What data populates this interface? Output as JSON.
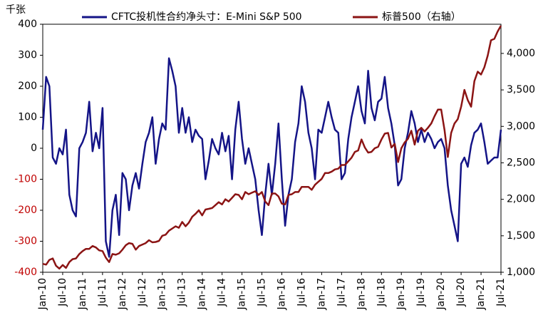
{
  "chart_data": {
    "type": "line",
    "y_unit": "千张",
    "legend": "top",
    "negative_tick_color": "#c00000",
    "x": [
      "2010-01",
      "2010-02",
      "2010-03",
      "2010-04",
      "2010-05",
      "2010-06",
      "2010-07",
      "2010-08",
      "2010-09",
      "2010-10",
      "2010-11",
      "2010-12",
      "2011-01",
      "2011-02",
      "2011-03",
      "2011-04",
      "2011-05",
      "2011-06",
      "2011-07",
      "2011-08",
      "2011-09",
      "2011-10",
      "2011-11",
      "2011-12",
      "2012-01",
      "2012-02",
      "2012-03",
      "2012-04",
      "2012-05",
      "2012-06",
      "2012-07",
      "2012-08",
      "2012-09",
      "2012-10",
      "2012-11",
      "2012-12",
      "2013-01",
      "2013-02",
      "2013-03",
      "2013-04",
      "2013-05",
      "2013-06",
      "2013-07",
      "2013-08",
      "2013-09",
      "2013-10",
      "2013-11",
      "2013-12",
      "2014-01",
      "2014-02",
      "2014-03",
      "2014-04",
      "2014-05",
      "2014-06",
      "2014-07",
      "2014-08",
      "2014-09",
      "2014-10",
      "2014-11",
      "2014-12",
      "2015-01",
      "2015-02",
      "2015-03",
      "2015-04",
      "2015-05",
      "2015-06",
      "2015-07",
      "2015-08",
      "2015-09",
      "2015-10",
      "2015-11",
      "2015-12",
      "2016-01",
      "2016-02",
      "2016-03",
      "2016-04",
      "2016-05",
      "2016-06",
      "2016-07",
      "2016-08",
      "2016-09",
      "2016-10",
      "2016-11",
      "2016-12",
      "2017-01",
      "2017-02",
      "2017-03",
      "2017-04",
      "2017-05",
      "2017-06",
      "2017-07",
      "2017-08",
      "2017-09",
      "2017-10",
      "2017-11",
      "2017-12",
      "2018-01",
      "2018-02",
      "2018-03",
      "2018-04",
      "2018-05",
      "2018-06",
      "2018-07",
      "2018-08",
      "2018-09",
      "2018-10",
      "2018-11",
      "2018-12",
      "2019-01",
      "2019-02",
      "2019-03",
      "2019-04",
      "2019-05",
      "2019-06",
      "2019-07",
      "2019-08",
      "2019-09",
      "2019-10",
      "2019-11",
      "2019-12",
      "2020-01",
      "2020-02",
      "2020-03",
      "2020-04",
      "2020-05",
      "2020-06",
      "2020-07",
      "2020-08",
      "2020-09",
      "2020-10",
      "2020-11",
      "2020-12",
      "2021-01",
      "2021-02",
      "2021-03",
      "2021-04",
      "2021-05",
      "2021-06",
      "2021-07"
    ],
    "xlim": [
      "2010-01",
      "2021-07"
    ],
    "xticks": [
      {
        "value": "2010-01",
        "label": "Jan-10"
      },
      {
        "value": "2010-07",
        "label": "Jul-10"
      },
      {
        "value": "2011-01",
        "label": "Jan-11"
      },
      {
        "value": "2011-07",
        "label": "Jul-11"
      },
      {
        "value": "2012-01",
        "label": "Jan-12"
      },
      {
        "value": "2012-07",
        "label": "Jul-12"
      },
      {
        "value": "2013-01",
        "label": "Jan-13"
      },
      {
        "value": "2013-07",
        "label": "Jul-13"
      },
      {
        "value": "2014-01",
        "label": "Jan-14"
      },
      {
        "value": "2014-07",
        "label": "Jul-14"
      },
      {
        "value": "2015-01",
        "label": "Jan-15"
      },
      {
        "value": "2015-07",
        "label": "Jul-15"
      },
      {
        "value": "2016-01",
        "label": "Jan-16"
      },
      {
        "value": "2016-07",
        "label": "Jul-16"
      },
      {
        "value": "2017-01",
        "label": "Jan-17"
      },
      {
        "value": "2017-07",
        "label": "Jul-17"
      },
      {
        "value": "2018-01",
        "label": "Jan-18"
      },
      {
        "value": "2018-07",
        "label": "Jul-18"
      },
      {
        "value": "2019-01",
        "label": "Jan-19"
      },
      {
        "value": "2019-07",
        "label": "Jul-19"
      },
      {
        "value": "2020-01",
        "label": "Jan-20"
      },
      {
        "value": "2020-07",
        "label": "Jul-20"
      },
      {
        "value": "2021-01",
        "label": "Jan-21"
      },
      {
        "value": "2021-07",
        "label": "Jul-21"
      }
    ],
    "ylim": [
      -400,
      400
    ],
    "yticks": [
      -400,
      -300,
      -200,
      -100,
      0,
      100,
      200,
      300,
      400
    ],
    "y2lim": [
      1000,
      4400
    ],
    "y2ticks": [
      {
        "value": 1000,
        "label": "1,000"
      },
      {
        "value": 1500,
        "label": "1,500"
      },
      {
        "value": 2000,
        "label": "2,000"
      },
      {
        "value": 2500,
        "label": "2,500"
      },
      {
        "value": 3000,
        "label": "3,000"
      },
      {
        "value": 3500,
        "label": "3,500"
      },
      {
        "value": 4000,
        "label": "4,000"
      }
    ],
    "series": [
      {
        "name": "CFTC投机性合约净头寸：E-Mini S&P 500",
        "color": "#141487",
        "axis": "y",
        "values": [
          60,
          230,
          200,
          -30,
          -50,
          0,
          -20,
          60,
          -150,
          -200,
          -220,
          0,
          20,
          50,
          150,
          -10,
          50,
          0,
          130,
          -300,
          -350,
          -200,
          -150,
          -280,
          -80,
          -100,
          -200,
          -120,
          -80,
          -130,
          -50,
          20,
          50,
          100,
          -50,
          30,
          80,
          60,
          290,
          250,
          200,
          50,
          130,
          50,
          100,
          20,
          60,
          40,
          30,
          -100,
          -40,
          30,
          0,
          -20,
          50,
          -10,
          40,
          -100,
          60,
          150,
          30,
          -50,
          0,
          -50,
          -100,
          -200,
          -280,
          -150,
          -50,
          -150,
          -50,
          80,
          -100,
          -250,
          -150,
          -100,
          20,
          80,
          200,
          150,
          50,
          0,
          -100,
          60,
          50,
          100,
          150,
          100,
          60,
          50,
          -100,
          -80,
          30,
          100,
          150,
          200,
          120,
          80,
          250,
          130,
          90,
          150,
          160,
          230,
          130,
          80,
          10,
          -120,
          -100,
          0,
          50,
          120,
          80,
          20,
          60,
          20,
          50,
          30,
          0,
          20,
          30,
          0,
          -120,
          -200,
          -250,
          -300,
          -50,
          -30,
          -60,
          10,
          50,
          60,
          80,
          20,
          -50,
          -40,
          -30,
          -30,
          60
        ]
      },
      {
        "name": "标普500（右轴）",
        "color": "#8b1414",
        "axis": "y2",
        "values": [
          1115,
          1105,
          1170,
          1190,
          1090,
          1050,
          1100,
          1060,
          1140,
          1180,
          1190,
          1250,
          1290,
          1320,
          1320,
          1360,
          1340,
          1300,
          1290,
          1200,
          1140,
          1250,
          1240,
          1260,
          1310,
          1370,
          1400,
          1390,
          1310,
          1360,
          1380,
          1400,
          1440,
          1410,
          1415,
          1430,
          1500,
          1515,
          1570,
          1600,
          1630,
          1610,
          1690,
          1630,
          1680,
          1760,
          1800,
          1850,
          1780,
          1860,
          1870,
          1880,
          1920,
          1960,
          1930,
          2000,
          1970,
          2020,
          2070,
          2060,
          2000,
          2100,
          2070,
          2090,
          2110,
          2060,
          2100,
          1970,
          1920,
          2080,
          2080,
          2040,
          1940,
          1930,
          2060,
          2070,
          2100,
          2100,
          2170,
          2170,
          2170,
          2130,
          2200,
          2240,
          2280,
          2360,
          2360,
          2380,
          2410,
          2420,
          2470,
          2470,
          2520,
          2570,
          2650,
          2670,
          2820,
          2710,
          2640,
          2650,
          2700,
          2720,
          2820,
          2900,
          2910,
          2710,
          2760,
          2510,
          2700,
          2780,
          2830,
          2940,
          2750,
          2940,
          2980,
          2930,
          2980,
          3040,
          3140,
          3230,
          3230,
          2950,
          2580,
          2910,
          3040,
          3100,
          3270,
          3500,
          3360,
          3270,
          3620,
          3750,
          3710,
          3810,
          3970,
          4180,
          4200,
          4300,
          4380
        ]
      }
    ]
  }
}
